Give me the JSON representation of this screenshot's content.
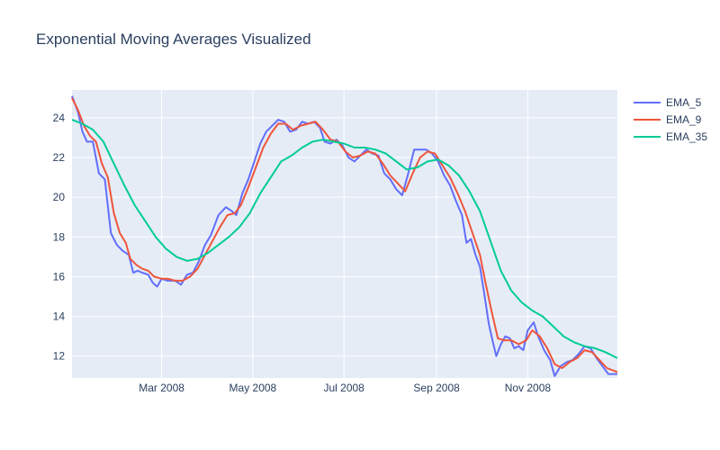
{
  "chart_data": {
    "type": "line",
    "title": "Exponential Moving Averages Visualized",
    "xlabel": "",
    "ylabel": "",
    "x_range": [
      "2008-01-01",
      "2008-12-31"
    ],
    "ylim": [
      10.9,
      25.4
    ],
    "x_ticks": [
      {
        "date": "2008-03-01",
        "label": "Mar 2008"
      },
      {
        "date": "2008-05-01",
        "label": "May 2008"
      },
      {
        "date": "2008-07-01",
        "label": "Jul 2008"
      },
      {
        "date": "2008-09-01",
        "label": "Sep 2008"
      },
      {
        "date": "2008-11-01",
        "label": "Nov 2008"
      }
    ],
    "y_ticks": [
      12,
      14,
      16,
      18,
      20,
      22,
      24
    ],
    "grid": true,
    "legend_position": "top-right",
    "series": [
      {
        "name": "EMA_5",
        "color": "#636efa",
        "points": [
          [
            "2008-01-01",
            25.1
          ],
          [
            "2008-01-05",
            24.3
          ],
          [
            "2008-01-08",
            23.3
          ],
          [
            "2008-01-11",
            22.8
          ],
          [
            "2008-01-15",
            22.8
          ],
          [
            "2008-01-19",
            21.2
          ],
          [
            "2008-01-23",
            20.9
          ],
          [
            "2008-01-27",
            18.2
          ],
          [
            "2008-01-31",
            17.6
          ],
          [
            "2008-02-04",
            17.3
          ],
          [
            "2008-02-08",
            17.1
          ],
          [
            "2008-02-11",
            16.2
          ],
          [
            "2008-02-14",
            16.3
          ],
          [
            "2008-02-17",
            16.2
          ],
          [
            "2008-02-21",
            16.1
          ],
          [
            "2008-02-24",
            15.7
          ],
          [
            "2008-02-27",
            15.5
          ],
          [
            "2008-03-01",
            15.9
          ],
          [
            "2008-03-05",
            15.8
          ],
          [
            "2008-03-10",
            15.8
          ],
          [
            "2008-03-14",
            15.6
          ],
          [
            "2008-03-18",
            16.1
          ],
          [
            "2008-03-22",
            16.2
          ],
          [
            "2008-03-26",
            16.8
          ],
          [
            "2008-03-30",
            17.6
          ],
          [
            "2008-04-03",
            18.1
          ],
          [
            "2008-04-08",
            19.1
          ],
          [
            "2008-04-13",
            19.5
          ],
          [
            "2008-04-17",
            19.3
          ],
          [
            "2008-04-20",
            19.1
          ],
          [
            "2008-04-24",
            20.2
          ],
          [
            "2008-04-28",
            20.9
          ],
          [
            "2008-05-02",
            21.8
          ],
          [
            "2008-05-06",
            22.7
          ],
          [
            "2008-05-10",
            23.3
          ],
          [
            "2008-05-14",
            23.6
          ],
          [
            "2008-05-18",
            23.9
          ],
          [
            "2008-05-22",
            23.8
          ],
          [
            "2008-05-26",
            23.3
          ],
          [
            "2008-05-30",
            23.4
          ],
          [
            "2008-06-03",
            23.8
          ],
          [
            "2008-06-07",
            23.7
          ],
          [
            "2008-06-11",
            23.8
          ],
          [
            "2008-06-15",
            23.5
          ],
          [
            "2008-06-18",
            22.8
          ],
          [
            "2008-06-22",
            22.7
          ],
          [
            "2008-06-26",
            22.9
          ],
          [
            "2008-06-30",
            22.6
          ],
          [
            "2008-07-04",
            22.0
          ],
          [
            "2008-07-08",
            21.8
          ],
          [
            "2008-07-12",
            22.1
          ],
          [
            "2008-07-16",
            22.4
          ],
          [
            "2008-07-20",
            22.2
          ],
          [
            "2008-07-24",
            22.1
          ],
          [
            "2008-07-28",
            21.2
          ],
          [
            "2008-08-01",
            20.9
          ],
          [
            "2008-08-05",
            20.4
          ],
          [
            "2008-08-09",
            20.1
          ],
          [
            "2008-08-13",
            21.2
          ],
          [
            "2008-08-17",
            22.4
          ],
          [
            "2008-08-21",
            22.4
          ],
          [
            "2008-08-25",
            22.4
          ],
          [
            "2008-08-29",
            22.2
          ],
          [
            "2008-09-02",
            21.8
          ],
          [
            "2008-09-06",
            21.1
          ],
          [
            "2008-09-10",
            20.6
          ],
          [
            "2008-09-14",
            19.8
          ],
          [
            "2008-09-18",
            19.1
          ],
          [
            "2008-09-21",
            17.7
          ],
          [
            "2008-09-24",
            17.9
          ],
          [
            "2008-09-27",
            17.1
          ],
          [
            "2008-09-30",
            16.5
          ],
          [
            "2008-10-03",
            15.1
          ],
          [
            "2008-10-06",
            13.6
          ],
          [
            "2008-10-09",
            12.6
          ],
          [
            "2008-10-11",
            12.0
          ],
          [
            "2008-10-14",
            12.6
          ],
          [
            "2008-10-17",
            13.0
          ],
          [
            "2008-10-20",
            12.9
          ],
          [
            "2008-10-23",
            12.4
          ],
          [
            "2008-10-26",
            12.5
          ],
          [
            "2008-10-29",
            12.3
          ],
          [
            "2008-11-01",
            13.3
          ],
          [
            "2008-11-05",
            13.7
          ],
          [
            "2008-11-08",
            13.0
          ],
          [
            "2008-11-12",
            12.3
          ],
          [
            "2008-11-16",
            11.8
          ],
          [
            "2008-11-19",
            11.0
          ],
          [
            "2008-11-23",
            11.5
          ],
          [
            "2008-11-27",
            11.7
          ],
          [
            "2008-12-01",
            11.8
          ],
          [
            "2008-12-05",
            12.1
          ],
          [
            "2008-12-09",
            12.5
          ],
          [
            "2008-12-13",
            12.4
          ],
          [
            "2008-12-17",
            11.9
          ],
          [
            "2008-12-21",
            11.5
          ],
          [
            "2008-12-25",
            11.1
          ],
          [
            "2008-12-31",
            11.1
          ]
        ]
      },
      {
        "name": "EMA_9",
        "color": "#ef553b",
        "points": [
          [
            "2008-01-01",
            25.0
          ],
          [
            "2008-01-05",
            24.4
          ],
          [
            "2008-01-09",
            23.6
          ],
          [
            "2008-01-13",
            23.1
          ],
          [
            "2008-01-17",
            22.8
          ],
          [
            "2008-01-21",
            21.7
          ],
          [
            "2008-01-25",
            21.0
          ],
          [
            "2008-01-29",
            19.2
          ],
          [
            "2008-02-02",
            18.2
          ],
          [
            "2008-02-06",
            17.7
          ],
          [
            "2008-02-09",
            16.9
          ],
          [
            "2008-02-13",
            16.6
          ],
          [
            "2008-02-17",
            16.4
          ],
          [
            "2008-02-21",
            16.3
          ],
          [
            "2008-02-25",
            16.0
          ],
          [
            "2008-03-01",
            15.9
          ],
          [
            "2008-03-05",
            15.9
          ],
          [
            "2008-03-10",
            15.8
          ],
          [
            "2008-03-15",
            15.8
          ],
          [
            "2008-03-20",
            16.0
          ],
          [
            "2008-03-25",
            16.4
          ],
          [
            "2008-03-30",
            17.1
          ],
          [
            "2008-04-04",
            17.8
          ],
          [
            "2008-04-09",
            18.5
          ],
          [
            "2008-04-14",
            19.1
          ],
          [
            "2008-04-19",
            19.2
          ],
          [
            "2008-04-23",
            19.6
          ],
          [
            "2008-04-28",
            20.5
          ],
          [
            "2008-05-03",
            21.5
          ],
          [
            "2008-05-08",
            22.5
          ],
          [
            "2008-05-13",
            23.2
          ],
          [
            "2008-05-18",
            23.7
          ],
          [
            "2008-05-23",
            23.7
          ],
          [
            "2008-05-28",
            23.4
          ],
          [
            "2008-06-02",
            23.6
          ],
          [
            "2008-06-07",
            23.7
          ],
          [
            "2008-06-12",
            23.8
          ],
          [
            "2008-06-17",
            23.4
          ],
          [
            "2008-06-22",
            22.9
          ],
          [
            "2008-06-27",
            22.8
          ],
          [
            "2008-07-02",
            22.3
          ],
          [
            "2008-07-07",
            22.0
          ],
          [
            "2008-07-12",
            22.1
          ],
          [
            "2008-07-17",
            22.3
          ],
          [
            "2008-07-22",
            22.2
          ],
          [
            "2008-07-27",
            21.7
          ],
          [
            "2008-08-01",
            21.1
          ],
          [
            "2008-08-06",
            20.7
          ],
          [
            "2008-08-11",
            20.3
          ],
          [
            "2008-08-16",
            21.2
          ],
          [
            "2008-08-21",
            22.0
          ],
          [
            "2008-08-26",
            22.3
          ],
          [
            "2008-08-31",
            22.2
          ],
          [
            "2008-09-05",
            21.6
          ],
          [
            "2008-09-10",
            21.0
          ],
          [
            "2008-09-15",
            20.2
          ],
          [
            "2008-09-20",
            19.3
          ],
          [
            "2008-09-25",
            18.2
          ],
          [
            "2008-09-30",
            17.1
          ],
          [
            "2008-10-04",
            15.6
          ],
          [
            "2008-10-08",
            14.2
          ],
          [
            "2008-10-12",
            12.9
          ],
          [
            "2008-10-16",
            12.8
          ],
          [
            "2008-10-21",
            12.8
          ],
          [
            "2008-10-26",
            12.6
          ],
          [
            "2008-10-31",
            12.8
          ],
          [
            "2008-11-04",
            13.3
          ],
          [
            "2008-11-09",
            13.0
          ],
          [
            "2008-11-14",
            12.4
          ],
          [
            "2008-11-19",
            11.6
          ],
          [
            "2008-11-24",
            11.4
          ],
          [
            "2008-11-29",
            11.7
          ],
          [
            "2008-12-04",
            11.9
          ],
          [
            "2008-12-09",
            12.3
          ],
          [
            "2008-12-14",
            12.2
          ],
          [
            "2008-12-19",
            11.8
          ],
          [
            "2008-12-24",
            11.4
          ],
          [
            "2008-12-31",
            11.2
          ]
        ]
      },
      {
        "name": "EMA_35",
        "color": "#00cc96",
        "points": [
          [
            "2008-01-01",
            23.9
          ],
          [
            "2008-01-08",
            23.7
          ],
          [
            "2008-01-15",
            23.4
          ],
          [
            "2008-01-22",
            22.8
          ],
          [
            "2008-01-29",
            21.7
          ],
          [
            "2008-02-05",
            20.6
          ],
          [
            "2008-02-12",
            19.6
          ],
          [
            "2008-02-19",
            18.8
          ],
          [
            "2008-02-26",
            18.0
          ],
          [
            "2008-03-04",
            17.4
          ],
          [
            "2008-03-11",
            17.0
          ],
          [
            "2008-03-18",
            16.8
          ],
          [
            "2008-03-25",
            16.9
          ],
          [
            "2008-04-01",
            17.2
          ],
          [
            "2008-04-08",
            17.6
          ],
          [
            "2008-04-15",
            18.0
          ],
          [
            "2008-04-22",
            18.5
          ],
          [
            "2008-04-29",
            19.2
          ],
          [
            "2008-05-06",
            20.2
          ],
          [
            "2008-05-13",
            21.0
          ],
          [
            "2008-05-20",
            21.8
          ],
          [
            "2008-05-27",
            22.1
          ],
          [
            "2008-06-03",
            22.5
          ],
          [
            "2008-06-10",
            22.8
          ],
          [
            "2008-06-17",
            22.9
          ],
          [
            "2008-06-24",
            22.8
          ],
          [
            "2008-07-01",
            22.7
          ],
          [
            "2008-07-08",
            22.5
          ],
          [
            "2008-07-15",
            22.5
          ],
          [
            "2008-07-22",
            22.4
          ],
          [
            "2008-07-29",
            22.2
          ],
          [
            "2008-08-05",
            21.8
          ],
          [
            "2008-08-12",
            21.4
          ],
          [
            "2008-08-19",
            21.5
          ],
          [
            "2008-08-26",
            21.8
          ],
          [
            "2008-09-02",
            21.9
          ],
          [
            "2008-09-09",
            21.6
          ],
          [
            "2008-09-16",
            21.1
          ],
          [
            "2008-09-23",
            20.3
          ],
          [
            "2008-09-30",
            19.3
          ],
          [
            "2008-10-07",
            17.8
          ],
          [
            "2008-10-14",
            16.3
          ],
          [
            "2008-10-21",
            15.3
          ],
          [
            "2008-10-28",
            14.7
          ],
          [
            "2008-11-04",
            14.3
          ],
          [
            "2008-11-11",
            14.0
          ],
          [
            "2008-11-18",
            13.5
          ],
          [
            "2008-11-25",
            13.0
          ],
          [
            "2008-12-02",
            12.7
          ],
          [
            "2008-12-09",
            12.5
          ],
          [
            "2008-12-16",
            12.4
          ],
          [
            "2008-12-23",
            12.2
          ],
          [
            "2008-12-31",
            11.9
          ]
        ]
      }
    ]
  }
}
